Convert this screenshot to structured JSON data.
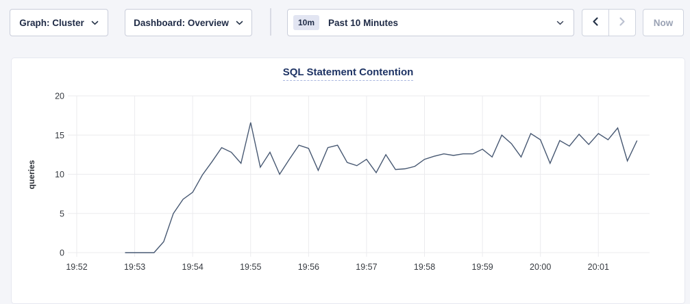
{
  "toolbar": {
    "graph_selector": {
      "label": "Graph: Cluster"
    },
    "dashboard_selector": {
      "label": "Dashboard: Overview"
    },
    "time_window": {
      "badge": "10m",
      "label": "Past 10 Minutes"
    },
    "now_label": "Now"
  },
  "colors": {
    "page_bg": "#f4f5f9",
    "card_bg": "#ffffff",
    "line": "#475872",
    "grid": "#ebebee",
    "tick_text": "#35393f",
    "title_text": "#1e3364",
    "control_text": "#1e2a45",
    "disabled_text": "#9aa2b4",
    "disabled_icon": "#bcc2d1",
    "badge_bg": "#e2e5f2"
  },
  "chart_data": {
    "type": "line",
    "title": "SQL Statement Contention",
    "xlabel": "",
    "ylabel": "queries",
    "ylim": [
      0,
      20
    ],
    "yticks": [
      0,
      5,
      10,
      15,
      20
    ],
    "grid": true,
    "legend": "none",
    "x_tick_labels": [
      "19:52",
      "19:53",
      "19:54",
      "19:55",
      "19:56",
      "19:57",
      "19:58",
      "19:59",
      "20:00",
      "20:01"
    ],
    "x_tick_offsets_s": [
      0,
      60,
      120,
      180,
      240,
      300,
      360,
      420,
      480,
      540
    ],
    "x_domain_s": [
      0,
      593
    ],
    "x_axis_start_time": "19:52",
    "series": [
      {
        "name": "queries",
        "start_offset_s": 50,
        "interval_s": 10,
        "values": [
          0,
          0,
          0,
          0,
          1.4,
          5.0,
          6.8,
          7.7,
          9.9,
          11.6,
          13.4,
          12.8,
          11.4,
          16.6,
          10.9,
          12.8,
          10.0,
          11.9,
          13.7,
          13.3,
          10.5,
          13.4,
          13.7,
          11.5,
          11.1,
          11.9,
          10.2,
          12.5,
          10.6,
          10.7,
          11.0,
          11.9,
          12.3,
          12.6,
          12.4,
          12.6,
          12.6,
          13.2,
          12.2,
          15.0,
          13.9,
          12.2,
          15.2,
          14.4,
          11.4,
          14.3,
          13.6,
          15.1,
          13.8,
          15.2,
          14.4,
          15.9,
          11.7,
          14.3
        ]
      }
    ]
  }
}
